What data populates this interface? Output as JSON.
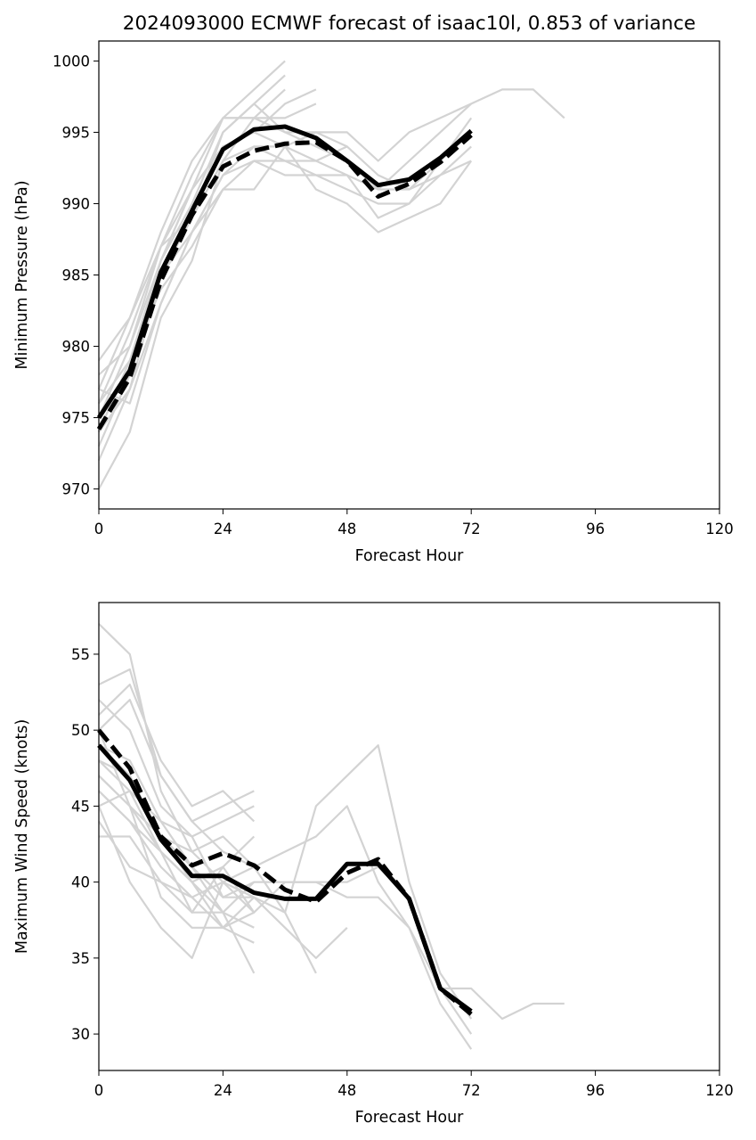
{
  "title": "2024093000 ECMWF forecast of isaac10l, 0.853 of variance",
  "chart_data": [
    {
      "type": "line",
      "name": "pressure",
      "xlabel": "Forecast Hour",
      "ylabel": "Minimum Pressure (hPa)",
      "xlim": [
        0,
        120
      ],
      "ylim": [
        968.6,
        1001.4
      ],
      "xticks": [
        0,
        24,
        48,
        72,
        96,
        120
      ],
      "yticks": [
        970,
        975,
        980,
        985,
        990,
        995,
        1000
      ],
      "grid": false,
      "members": [
        {
          "x": [
            0,
            6,
            12,
            18,
            24,
            30,
            36,
            42,
            48,
            54,
            60,
            66,
            72
          ],
          "y": [
            970,
            974,
            982,
            986,
            993,
            996,
            995,
            995,
            995,
            993,
            995,
            996,
            997
          ]
        },
        {
          "x": [
            0,
            6,
            12,
            18,
            24,
            30,
            36,
            42,
            48,
            54,
            60,
            66,
            72,
            78,
            84,
            90
          ],
          "y": [
            972,
            977,
            985,
            989,
            995,
            997,
            995,
            994,
            993,
            991,
            993,
            995,
            997,
            998,
            998,
            996
          ]
        },
        {
          "x": [
            0,
            6,
            12,
            18,
            24,
            30,
            36
          ],
          "y": [
            973,
            978,
            986,
            991,
            996,
            998,
            1000
          ]
        },
        {
          "x": [
            0,
            6,
            12,
            18,
            24,
            30,
            36
          ],
          "y": [
            974,
            979,
            986,
            990,
            995,
            997,
            999
          ]
        },
        {
          "x": [
            0,
            6,
            12,
            18,
            24,
            30,
            36
          ],
          "y": [
            975,
            980,
            987,
            992,
            996,
            996,
            998
          ]
        },
        {
          "x": [
            0,
            6,
            12,
            18,
            24,
            30,
            36,
            42
          ],
          "y": [
            976,
            981,
            987,
            991,
            994,
            995,
            997,
            998
          ]
        },
        {
          "x": [
            0,
            6,
            12,
            18,
            24,
            30,
            36,
            42
          ],
          "y": [
            977,
            982,
            988,
            993,
            996,
            996,
            996,
            997
          ]
        },
        {
          "x": [
            0,
            6,
            12,
            18,
            24,
            30,
            36,
            42,
            48,
            54,
            60,
            66,
            72
          ],
          "y": [
            978,
            980,
            986,
            991,
            994,
            995,
            994,
            995,
            994,
            992,
            991,
            992,
            993
          ]
        },
        {
          "x": [
            0,
            6,
            12,
            18,
            24,
            30,
            36,
            42,
            48,
            54,
            60,
            66,
            72
          ],
          "y": [
            979,
            982,
            987,
            989,
            993,
            994,
            993,
            992,
            992,
            991,
            991,
            993,
            995
          ]
        },
        {
          "x": [
            0,
            6,
            12,
            18,
            24,
            30,
            36,
            42,
            48,
            54,
            60,
            66,
            72
          ],
          "y": [
            975,
            978,
            985,
            988,
            991,
            991,
            994,
            991,
            990,
            988,
            989,
            990,
            993
          ]
        },
        {
          "x": [
            0,
            6,
            12,
            18,
            24,
            30,
            36,
            42,
            48,
            54,
            60,
            66,
            72
          ],
          "y": [
            974,
            977,
            983,
            988,
            992,
            993,
            992,
            992,
            991,
            990,
            990,
            992,
            994
          ]
        },
        {
          "x": [
            0,
            6,
            12,
            18,
            24,
            30,
            36,
            42,
            48,
            54,
            60,
            66,
            72
          ],
          "y": [
            976,
            979,
            984,
            987,
            991,
            993,
            993,
            993,
            992,
            989,
            990,
            993,
            996
          ]
        },
        {
          "x": [
            0,
            6,
            12,
            18,
            24,
            30,
            36,
            42,
            48
          ],
          "y": [
            977,
            976,
            983,
            988,
            992,
            994,
            994,
            993,
            994
          ]
        }
      ],
      "mean": {
        "x": [
          0,
          6,
          12,
          18,
          24,
          30,
          36,
          42,
          48,
          54,
          60,
          66,
          72
        ],
        "y": [
          975,
          978.3,
          985.2,
          989.5,
          993.8,
          995.2,
          995.4,
          994.6,
          993.0,
          991.3,
          991.7,
          993.2,
          995.1
        ]
      },
      "median": {
        "x": [
          0,
          6,
          12,
          18,
          24,
          30,
          36,
          42,
          48,
          54,
          60,
          66,
          72
        ],
        "y": [
          974.2,
          977.8,
          984.6,
          989.2,
          992.6,
          993.7,
          994.2,
          994.3,
          993.0,
          990.5,
          991.4,
          992.9,
          994.8
        ]
      }
    },
    {
      "type": "line",
      "name": "wind",
      "xlabel": "Forecast Hour",
      "ylabel": "Maximum Wind Speed (knots)",
      "xlim": [
        0,
        120
      ],
      "ylim": [
        27.6,
        58.4
      ],
      "xticks": [
        0,
        24,
        48,
        72,
        96,
        120
      ],
      "yticks": [
        30,
        35,
        40,
        45,
        50,
        55
      ],
      "grid": false,
      "members": [
        {
          "x": [
            0,
            6,
            12,
            18,
            24,
            30
          ],
          "y": [
            57,
            55,
            46,
            42,
            40,
            38
          ]
        },
        {
          "x": [
            0,
            6,
            12,
            18,
            24,
            30
          ],
          "y": [
            53,
            54,
            47,
            44,
            45,
            46
          ]
        },
        {
          "x": [
            0,
            6,
            12,
            18,
            24,
            30
          ],
          "y": [
            52,
            50,
            45,
            43,
            44,
            45
          ]
        },
        {
          "x": [
            0,
            6,
            12,
            18,
            24,
            30
          ],
          "y": [
            51,
            53,
            48,
            45,
            46,
            44
          ]
        },
        {
          "x": [
            0,
            6,
            12,
            18,
            24,
            30
          ],
          "y": [
            50,
            52,
            47,
            44,
            42,
            41
          ]
        },
        {
          "x": [
            0,
            6,
            12,
            18,
            24,
            30
          ],
          "y": [
            49,
            48,
            44,
            43,
            39,
            40
          ]
        },
        {
          "x": [
            0,
            6,
            12,
            18,
            24,
            30
          ],
          "y": [
            48,
            47,
            43,
            41,
            38,
            37
          ]
        },
        {
          "x": [
            0,
            6,
            12,
            18,
            24,
            30
          ],
          "y": [
            47,
            45,
            42,
            40,
            37,
            36
          ]
        },
        {
          "x": [
            0,
            6,
            12,
            18,
            24,
            30
          ],
          "y": [
            46,
            44,
            41,
            39,
            40,
            39
          ]
        },
        {
          "x": [
            0,
            6,
            12,
            18,
            24,
            30
          ],
          "y": [
            45,
            46,
            42,
            38,
            41,
            43
          ]
        },
        {
          "x": [
            0,
            6,
            12,
            18,
            24,
            30
          ],
          "y": [
            43,
            43,
            40,
            38,
            38,
            34
          ]
        },
        {
          "x": [
            0,
            6,
            12,
            18,
            24,
            30
          ],
          "y": [
            50,
            45,
            39,
            37,
            37,
            38
          ]
        },
        {
          "x": [
            0,
            6,
            12,
            18,
            24,
            30,
            36,
            42,
            48,
            54,
            60,
            66,
            72,
            78,
            84,
            90
          ],
          "y": [
            47,
            45,
            43,
            40,
            41,
            38,
            40,
            40,
            40,
            41,
            39,
            33,
            33,
            31,
            32,
            32
          ]
        },
        {
          "x": [
            0,
            6,
            12,
            18,
            24,
            30,
            36,
            42,
            48,
            54,
            60,
            66,
            72
          ],
          "y": [
            49,
            47,
            43,
            42,
            43,
            41,
            42,
            43,
            45,
            40,
            37,
            33,
            30
          ]
        },
        {
          "x": [
            0,
            6,
            12,
            18,
            24,
            30,
            36,
            42,
            48,
            54,
            60,
            66,
            72
          ],
          "y": [
            48,
            46,
            44,
            41,
            39,
            39,
            38,
            45,
            47,
            49,
            40,
            34,
            31
          ]
        },
        {
          "x": [
            0,
            6,
            12,
            18,
            24,
            30,
            36,
            42,
            48,
            54,
            60,
            66,
            72
          ],
          "y": [
            46,
            44,
            42,
            40,
            38,
            40,
            40,
            40,
            39,
            39,
            37,
            32,
            29
          ]
        },
        {
          "x": [
            0,
            6,
            12,
            18,
            24,
            30,
            36,
            42
          ],
          "y": [
            45,
            40,
            37,
            35,
            40,
            41,
            38,
            34
          ]
        },
        {
          "x": [
            0,
            6,
            12,
            18,
            24,
            30,
            36,
            42,
            48
          ],
          "y": [
            44,
            41,
            40,
            39,
            37,
            39,
            37,
            35,
            37
          ]
        }
      ],
      "mean": {
        "x": [
          0,
          6,
          12,
          18,
          24,
          30,
          36,
          42,
          48,
          54,
          60,
          66,
          72
        ],
        "y": [
          49,
          46.7,
          42.8,
          40.4,
          40.4,
          39.3,
          38.9,
          38.9,
          41.2,
          41.2,
          38.9,
          33,
          31.5
        ]
      },
      "median": {
        "x": [
          0,
          6,
          12,
          18,
          24,
          30,
          36,
          42,
          48,
          54,
          60,
          66,
          72
        ],
        "y": [
          50,
          47.5,
          43,
          41.1,
          41.9,
          41.1,
          39.5,
          38.7,
          40.6,
          41.5,
          38.9,
          33,
          31.3
        ]
      }
    }
  ]
}
